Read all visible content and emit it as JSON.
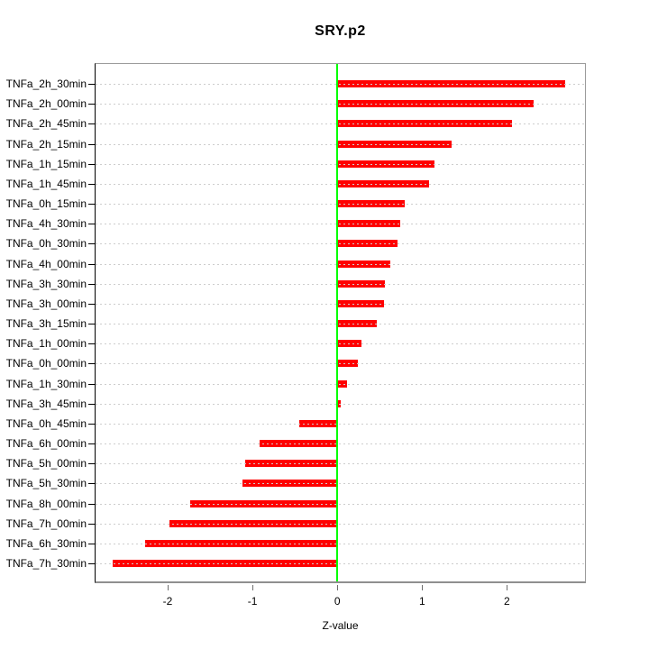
{
  "chart_data": {
    "type": "bar",
    "orientation": "horizontal",
    "title": "SRY.p2",
    "xlabel": "Z-value",
    "ylabel": "",
    "xlim": [
      -2.85,
      2.92
    ],
    "xticks": [
      -2,
      -1,
      0,
      1,
      2
    ],
    "grid": "horizontal-dotted",
    "zero_line": true,
    "legend": "none",
    "categories": [
      "TNFa_2h_30min",
      "TNFa_2h_00min",
      "TNFa_2h_45min",
      "TNFa_2h_15min",
      "TNFa_1h_15min",
      "TNFa_1h_45min",
      "TNFa_0h_15min",
      "TNFa_4h_30min",
      "TNFa_0h_30min",
      "TNFa_4h_00min",
      "TNFa_3h_30min",
      "TNFa_3h_00min",
      "TNFa_3h_15min",
      "TNFa_1h_00min",
      "TNFa_0h_00min",
      "TNFa_1h_30min",
      "TNFa_3h_45min",
      "TNFa_0h_45min",
      "TNFa_6h_00min",
      "TNFa_5h_00min",
      "TNFa_5h_30min",
      "TNFa_8h_00min",
      "TNFa_7h_00min",
      "TNFa_6h_30min",
      "TNFa_7h_30min"
    ],
    "values": [
      2.69,
      2.31,
      2.06,
      1.35,
      1.15,
      1.08,
      0.8,
      0.74,
      0.71,
      0.63,
      0.56,
      0.55,
      0.47,
      0.29,
      0.24,
      0.12,
      0.04,
      -0.45,
      -0.92,
      -1.09,
      -1.12,
      -1.74,
      -1.98,
      -2.27,
      -2.65
    ],
    "colors": {
      "bar": "#ff0000",
      "zero_line": "#00ff00",
      "grid": "#cdcdcd",
      "axis_text": "#000000",
      "box": "#9b9b9b"
    }
  }
}
